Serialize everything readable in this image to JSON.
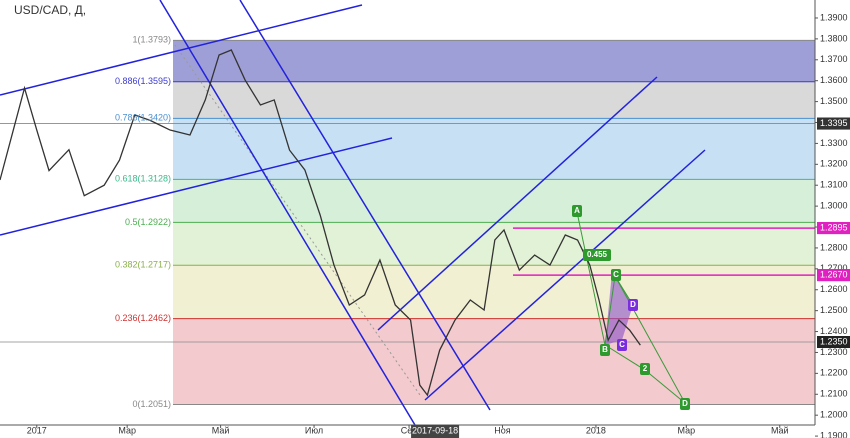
{
  "chart_data": {
    "type": "line",
    "title": "USD/CAD, Д,",
    "x": [
      -24,
      -8,
      0,
      8,
      21,
      31,
      44,
      54,
      64,
      74,
      87,
      100,
      110,
      119,
      127,
      136,
      146,
      155,
      165,
      175,
      185,
      194,
      204,
      214,
      224,
      234,
      244,
      250,
      255,
      263,
      273,
      283,
      292,
      299,
      305,
      315,
      325,
      335,
      345,
      353,
      361,
      367,
      373,
      380,
      387,
      394
    ],
    "values": [
      1.3125,
      1.3565,
      1.3364,
      1.317,
      1.327,
      1.305,
      1.31,
      1.322,
      1.3436,
      1.341,
      1.3364,
      1.334,
      1.3508,
      1.3723,
      1.3747,
      1.3603,
      1.3484,
      1.3508,
      1.3268,
      1.3173,
      1.2957,
      1.2718,
      1.2527,
      1.2575,
      1.2742,
      1.2527,
      1.2455,
      1.2144,
      1.2096,
      1.2311,
      1.2455,
      1.2551,
      1.2503,
      1.2838,
      1.2886,
      1.2694,
      1.2766,
      1.2718,
      1.2862,
      1.2838,
      1.2718,
      1.2551,
      1.2359,
      1.2455,
      1.2407,
      1.2335
    ],
    "color": "#333333",
    "xlim": [
      -24,
      508
    ],
    "ylim": [
      1.1953,
      1.3986
    ],
    "xticks": [
      {
        "value": 0,
        "label": "2017"
      },
      {
        "value": 59,
        "label": "Мар"
      },
      {
        "value": 120,
        "label": "Май"
      },
      {
        "value": 181,
        "label": "Июл"
      },
      {
        "value": 243,
        "label": "Сен"
      },
      {
        "value": 304,
        "label": "Ноя"
      },
      {
        "value": 365,
        "label": "2018"
      },
      {
        "value": 424,
        "label": "Мар"
      },
      {
        "value": 485,
        "label": "Май"
      }
    ],
    "yticks": [
      {
        "value": 1.19,
        "label": "1.1900"
      },
      {
        "value": 1.2,
        "label": "1.2000"
      },
      {
        "value": 1.21,
        "label": "1.2100"
      },
      {
        "value": 1.22,
        "label": "1.2200"
      },
      {
        "value": 1.23,
        "label": "1.2300"
      },
      {
        "value": 1.24,
        "label": "1.2400"
      },
      {
        "value": 1.25,
        "label": "1.2500"
      },
      {
        "value": 1.26,
        "label": "1.2600"
      },
      {
        "value": 1.27,
        "label": "1.2700"
      },
      {
        "value": 1.28,
        "label": "1.2800"
      },
      {
        "value": 1.29,
        "label": "1.2900"
      },
      {
        "value": 1.3,
        "label": "1.3000"
      },
      {
        "value": 1.31,
        "label": "1.3100"
      },
      {
        "value": 1.32,
        "label": "1.3200"
      },
      {
        "value": 1.33,
        "label": "1.3300"
      },
      {
        "value": 1.34,
        "label": "1.3400"
      },
      {
        "value": 1.35,
        "label": "1.3500"
      },
      {
        "value": 1.36,
        "label": "1.3600"
      },
      {
        "value": 1.37,
        "label": "1.3700"
      },
      {
        "value": 1.38,
        "label": "1.3800"
      },
      {
        "value": 1.39,
        "label": "1.3900"
      }
    ],
    "fib_levels": [
      {
        "value": 1.3793,
        "label": "1(1.3793)",
        "color": "#888888",
        "fill": "#9f9fd8"
      },
      {
        "value": 1.3595,
        "label": "0.886(1.3595)",
        "color": "#3c3cd0",
        "fill": "#d9d9d9"
      },
      {
        "value": 1.342,
        "label": "0.786(1.3420)",
        "color": "#4a90d0",
        "fill": "#c7e0f3"
      },
      {
        "value": 1.3128,
        "label": "0.618(1.3128)",
        "color": "#3db88a",
        "fill": "#d5efd9"
      },
      {
        "value": 1.2922,
        "label": "0.5(1.2922)",
        "color": "#4caf50",
        "fill": "#e2f2d6"
      },
      {
        "value": 1.2717,
        "label": "0.382(1.2717)",
        "color": "#8ab04a",
        "fill": "#f1f0d2"
      },
      {
        "value": 1.2462,
        "label": "0.236(1.2462)",
        "color": "#d03030",
        "fill": "#f3cacd"
      },
      {
        "value": 1.2051,
        "label": "0(1.2051)",
        "color": "#888888"
      }
    ],
    "price_marks": [
      {
        "value": 1.3395,
        "label": "1.3395",
        "color": "#333333"
      },
      {
        "value": 1.2895,
        "label": "1.2895",
        "color": "#e020c0"
      },
      {
        "value": 1.267,
        "label": "1.2670",
        "color": "#e020c0"
      },
      {
        "value": 1.235,
        "label": "1.2350",
        "color": "#222222"
      }
    ],
    "date_marker": {
      "value": 260,
      "label": "2017-09-18"
    },
    "annotations": [
      "A",
      "B",
      "C",
      "D",
      "C",
      "2",
      "D",
      "0.455"
    ]
  }
}
